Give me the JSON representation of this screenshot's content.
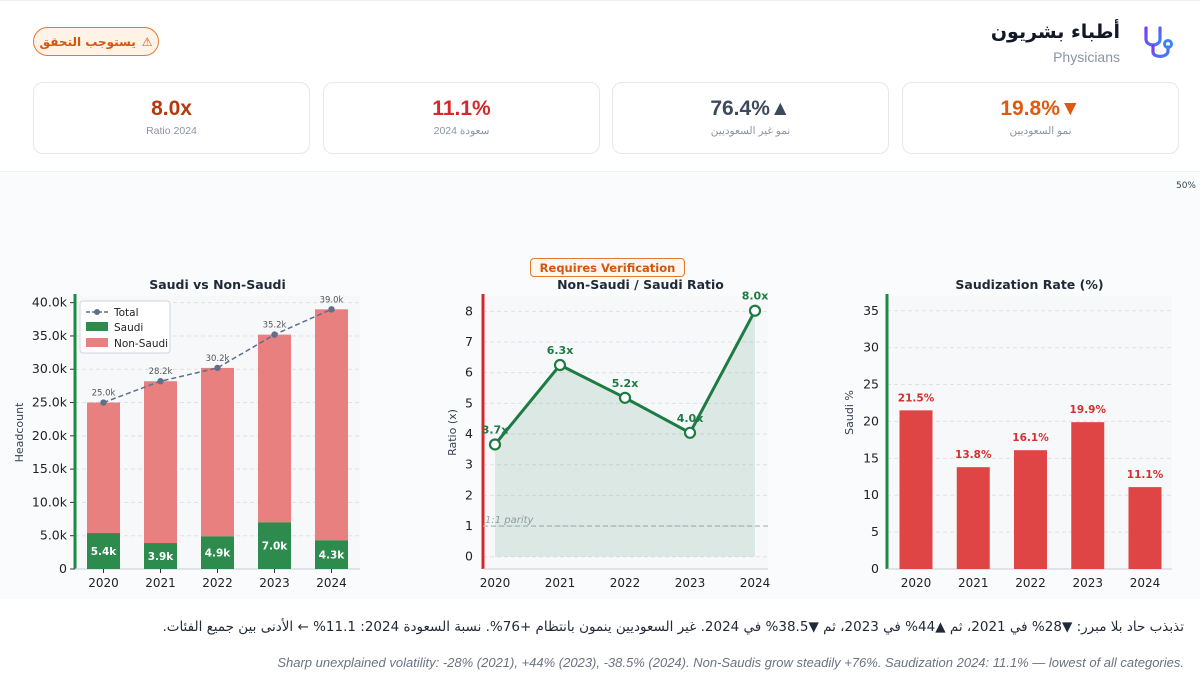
{
  "header": {
    "title_ar": "أطباء بشريون",
    "subtitle": "Physicians",
    "verify_badge": "يستوجب التحقق",
    "icon": "stethoscope-icon"
  },
  "kpis": [
    {
      "value": "8.0x",
      "label": "Ratio 2024",
      "color": "#b8380c"
    },
    {
      "value": "11.1%",
      "label": "سعودة 2024",
      "color": "#d62828"
    },
    {
      "value": "76.4%▲",
      "label": "نمو غير السعوديين",
      "color": "#3d4a5c"
    },
    {
      "value": "19.8%▼",
      "label": "نمو السعوديين",
      "color": "#e0590f"
    }
  ],
  "corner_pct": "50%",
  "requires_verification": "Requires Verification",
  "colors": {
    "saudi": "#2e8b4e",
    "non_saudi": "#e88080",
    "total": "#5f6f88",
    "ratio": "#1e7b43",
    "rate": "#e04545",
    "rate_label": "#d62f2f"
  },
  "chart_data": [
    {
      "type": "bar",
      "title": "Saudi vs Non-Saudi",
      "xlabel": "",
      "ylabel": "Headcount",
      "categories": [
        "2020",
        "2021",
        "2022",
        "2023",
        "2024"
      ],
      "series": [
        {
          "name": "Saudi",
          "values": [
            5400,
            3900,
            4900,
            7000,
            4300
          ],
          "labels": [
            "5.4k",
            "3.9k",
            "4.9k",
            "7.0k",
            "4.3k"
          ]
        },
        {
          "name": "Non-Saudi",
          "values": [
            19600,
            24300,
            25300,
            28200,
            34700
          ]
        },
        {
          "name": "Total",
          "values": [
            25000,
            28200,
            30200,
            35200,
            39000
          ],
          "labels": [
            "25.0k",
            "28.2k",
            "30.2k",
            "35.2k",
            "39.0k"
          ]
        }
      ],
      "yticks": [
        "0",
        "5.0k",
        "10.0k",
        "15.0k",
        "20.0k",
        "25.0k",
        "30.0k",
        "35.0k",
        "40.0k"
      ],
      "ylim": [
        0,
        41000
      ],
      "legend": [
        "Total",
        "Saudi",
        "Non-Saudi"
      ]
    },
    {
      "type": "line",
      "title": "Non-Saudi / Saudi Ratio",
      "ylabel": "Ratio (x)",
      "categories": [
        "2020",
        "2021",
        "2022",
        "2023",
        "2024"
      ],
      "values": [
        3.66,
        6.25,
        5.18,
        4.04,
        8.02
      ],
      "labels": [
        "3.7x",
        "6.3x",
        "5.2x",
        "4.0x",
        "8.0x"
      ],
      "yticks": [
        "0",
        "1",
        "2",
        "3",
        "4",
        "5",
        "6",
        "7",
        "8"
      ],
      "ylim": [
        -0.4,
        8.5
      ],
      "annotation": "1:1 parity"
    },
    {
      "type": "bar",
      "title": "Saudization Rate (%)",
      "ylabel": "Saudi %",
      "categories": [
        "2020",
        "2021",
        "2022",
        "2023",
        "2024"
      ],
      "values": [
        21.5,
        13.8,
        16.1,
        19.9,
        11.1
      ],
      "labels": [
        "21.5%",
        "13.8%",
        "16.1%",
        "19.9%",
        "11.1%"
      ],
      "yticks": [
        "0",
        "5",
        "10",
        "15",
        "20",
        "25",
        "30",
        "35"
      ],
      "ylim": [
        0,
        37
      ]
    }
  ],
  "footer": {
    "arabic": "تذبذب حاد بلا مبرر: ▼28% في 2021، ثم ▲44% في 2023، ثم ▼38.5% في 2024. غير السعوديين ينمون بانتظام +76%. نسبة السعودة 2024: 11.1% ← الأدنى بين جميع الفئات.",
    "english": "Sharp unexplained volatility: -28% (2021), +44% (2023), -38.5% (2024). Non-Saudis grow steadily +76%. Saudization 2024: 11.1% — lowest of all categories."
  }
}
